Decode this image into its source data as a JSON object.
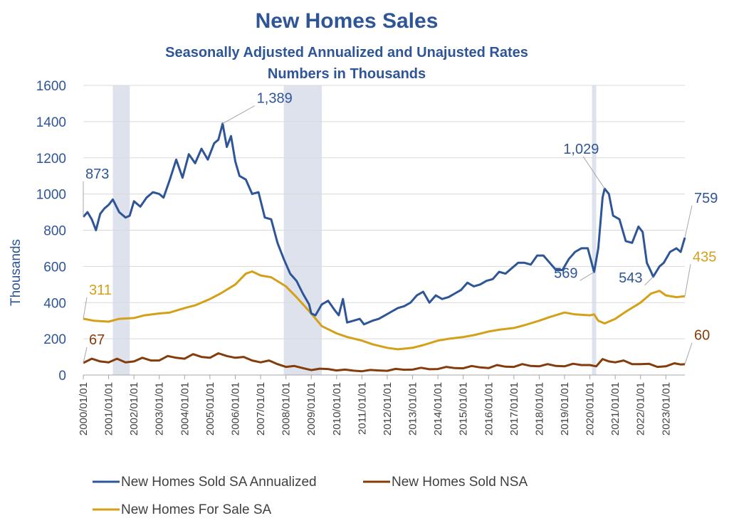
{
  "chart_data": {
    "type": "line",
    "title": "New Homes Sales",
    "subtitle_line1": "Seasonally Adjusted Annualized and Unajusted Rates",
    "subtitle_line2": "Numbers in Thousands",
    "ylabel": "Thousands",
    "xlabel": "",
    "ylim": [
      0,
      1600
    ],
    "xlim": [
      "2000/01/01",
      "2023/10/01"
    ],
    "y_ticks": [
      "0",
      "200",
      "400",
      "600",
      "800",
      "1000",
      "1200",
      "1400",
      "1600"
    ],
    "x_ticks": [
      "2000/01/01",
      "2001/01/01",
      "2002/01/01",
      "2003/01/01",
      "2004/01/01",
      "2005/01/01",
      "2006/01/01",
      "2007/01/01",
      "2008/01/01",
      "2009/01/01",
      "2010/01/01",
      "2011/01/01",
      "2012/01/01",
      "2013/01/01",
      "2014/01/01",
      "2015/01/01",
      "2016/01/01",
      "2017/01/01",
      "2018/01/01",
      "2019/01/01",
      "2020/01/01",
      "2021/01/01",
      "2022/01/01",
      "2023/01/01"
    ],
    "grid": "horizontal",
    "legend_position": "bottom",
    "recessions": [
      {
        "start": "2001/03/01",
        "end": "2001/11/01"
      },
      {
        "start": "2007/12/01",
        "end": "2009/06/01"
      },
      {
        "start": "2020/02/01",
        "end": "2020/04/01"
      }
    ],
    "series": [
      {
        "name": "New Homes Sold SA Annualized",
        "color": "#2e5597",
        "points": [
          [
            "2000/01/01",
            873
          ],
          [
            "2000/03/01",
            900
          ],
          [
            "2000/05/01",
            860
          ],
          [
            "2000/07/01",
            800
          ],
          [
            "2000/09/01",
            890
          ],
          [
            "2000/11/01",
            920
          ],
          [
            "2001/01/01",
            940
          ],
          [
            "2001/03/01",
            970
          ],
          [
            "2001/06/01",
            900
          ],
          [
            "2001/09/01",
            870
          ],
          [
            "2001/11/01",
            880
          ],
          [
            "2002/01/01",
            960
          ],
          [
            "2002/04/01",
            930
          ],
          [
            "2002/07/01",
            980
          ],
          [
            "2002/10/01",
            1010
          ],
          [
            "2003/01/01",
            1000
          ],
          [
            "2003/03/01",
            980
          ],
          [
            "2003/06/01",
            1080
          ],
          [
            "2003/09/01",
            1190
          ],
          [
            "2003/12/01",
            1090
          ],
          [
            "2004/03/01",
            1220
          ],
          [
            "2004/06/01",
            1170
          ],
          [
            "2004/09/01",
            1250
          ],
          [
            "2004/12/01",
            1190
          ],
          [
            "2005/03/01",
            1280
          ],
          [
            "2005/05/01",
            1300
          ],
          [
            "2005/07/01",
            1389
          ],
          [
            "2005/09/01",
            1260
          ],
          [
            "2005/11/01",
            1320
          ],
          [
            "2006/01/01",
            1180
          ],
          [
            "2006/03/01",
            1100
          ],
          [
            "2006/06/01",
            1080
          ],
          [
            "2006/09/01",
            1000
          ],
          [
            "2006/12/01",
            1010
          ],
          [
            "2007/03/01",
            870
          ],
          [
            "2007/06/01",
            860
          ],
          [
            "2007/09/01",
            730
          ],
          [
            "2007/12/01",
            640
          ],
          [
            "2008/03/01",
            560
          ],
          [
            "2008/06/01",
            520
          ],
          [
            "2008/09/01",
            450
          ],
          [
            "2008/12/01",
            390
          ],
          [
            "2009/01/01",
            340
          ],
          [
            "2009/03/01",
            330
          ],
          [
            "2009/06/01",
            390
          ],
          [
            "2009/09/01",
            410
          ],
          [
            "2009/12/01",
            360
          ],
          [
            "2010/02/01",
            330
          ],
          [
            "2010/04/01",
            420
          ],
          [
            "2010/06/01",
            290
          ],
          [
            "2010/09/01",
            300
          ],
          [
            "2010/12/01",
            310
          ],
          [
            "2011/02/01",
            280
          ],
          [
            "2011/06/01",
            300
          ],
          [
            "2011/09/01",
            310
          ],
          [
            "2011/12/01",
            330
          ],
          [
            "2012/03/01",
            350
          ],
          [
            "2012/06/01",
            370
          ],
          [
            "2012/09/01",
            380
          ],
          [
            "2012/12/01",
            400
          ],
          [
            "2013/03/01",
            440
          ],
          [
            "2013/06/01",
            460
          ],
          [
            "2013/09/01",
            400
          ],
          [
            "2013/12/01",
            440
          ],
          [
            "2014/03/01",
            420
          ],
          [
            "2014/06/01",
            430
          ],
          [
            "2014/09/01",
            450
          ],
          [
            "2014/12/01",
            470
          ],
          [
            "2015/03/01",
            510
          ],
          [
            "2015/06/01",
            490
          ],
          [
            "2015/09/01",
            500
          ],
          [
            "2015/12/01",
            520
          ],
          [
            "2016/03/01",
            530
          ],
          [
            "2016/06/01",
            570
          ],
          [
            "2016/09/01",
            560
          ],
          [
            "2016/12/01",
            590
          ],
          [
            "2017/03/01",
            620
          ],
          [
            "2017/06/01",
            620
          ],
          [
            "2017/09/01",
            610
          ],
          [
            "2017/12/01",
            660
          ],
          [
            "2018/03/01",
            660
          ],
          [
            "2018/06/01",
            620
          ],
          [
            "2018/09/01",
            580
          ],
          [
            "2018/12/01",
            580
          ],
          [
            "2019/03/01",
            640
          ],
          [
            "2019/06/01",
            680
          ],
          [
            "2019/09/01",
            700
          ],
          [
            "2019/12/01",
            700
          ],
          [
            "2020/03/01",
            569
          ],
          [
            "2020/05/01",
            700
          ],
          [
            "2020/07/01",
            980
          ],
          [
            "2020/08/01",
            1029
          ],
          [
            "2020/10/01",
            1000
          ],
          [
            "2020/12/01",
            880
          ],
          [
            "2021/03/01",
            860
          ],
          [
            "2021/06/01",
            740
          ],
          [
            "2021/09/01",
            730
          ],
          [
            "2021/12/01",
            820
          ],
          [
            "2022/02/01",
            790
          ],
          [
            "2022/04/01",
            620
          ],
          [
            "2022/06/01",
            570
          ],
          [
            "2022/07/01",
            543
          ],
          [
            "2022/10/01",
            600
          ],
          [
            "2022/12/01",
            620
          ],
          [
            "2023/03/01",
            680
          ],
          [
            "2023/06/01",
            700
          ],
          [
            "2023/08/01",
            680
          ],
          [
            "2023/10/01",
            759
          ]
        ]
      },
      {
        "name": "New Homes Sold NSA",
        "color": "#843c0c",
        "points": [
          [
            "2000/01/01",
            67
          ],
          [
            "2000/05/01",
            90
          ],
          [
            "2000/09/01",
            75
          ],
          [
            "2001/01/01",
            70
          ],
          [
            "2001/05/01",
            90
          ],
          [
            "2001/09/01",
            70
          ],
          [
            "2002/01/01",
            75
          ],
          [
            "2002/05/01",
            95
          ],
          [
            "2002/09/01",
            80
          ],
          [
            "2003/01/01",
            80
          ],
          [
            "2003/05/01",
            105
          ],
          [
            "2003/09/01",
            95
          ],
          [
            "2004/01/01",
            90
          ],
          [
            "2004/05/01",
            115
          ],
          [
            "2004/09/01",
            100
          ],
          [
            "2005/01/01",
            95
          ],
          [
            "2005/05/01",
            120
          ],
          [
            "2005/09/01",
            105
          ],
          [
            "2006/01/01",
            95
          ],
          [
            "2006/05/01",
            100
          ],
          [
            "2006/09/01",
            80
          ],
          [
            "2007/01/01",
            70
          ],
          [
            "2007/05/01",
            80
          ],
          [
            "2007/09/01",
            60
          ],
          [
            "2008/01/01",
            45
          ],
          [
            "2008/05/01",
            50
          ],
          [
            "2008/09/01",
            38
          ],
          [
            "2009/01/01",
            27
          ],
          [
            "2009/05/01",
            35
          ],
          [
            "2009/09/01",
            33
          ],
          [
            "2010/01/01",
            25
          ],
          [
            "2010/05/01",
            30
          ],
          [
            "2010/09/01",
            24
          ],
          [
            "2011/01/01",
            21
          ],
          [
            "2011/05/01",
            28
          ],
          [
            "2011/09/01",
            25
          ],
          [
            "2012/01/01",
            23
          ],
          [
            "2012/05/01",
            34
          ],
          [
            "2012/09/01",
            29
          ],
          [
            "2013/01/01",
            30
          ],
          [
            "2013/05/01",
            40
          ],
          [
            "2013/09/01",
            32
          ],
          [
            "2014/01/01",
            33
          ],
          [
            "2014/05/01",
            45
          ],
          [
            "2014/09/01",
            38
          ],
          [
            "2015/01/01",
            37
          ],
          [
            "2015/05/01",
            50
          ],
          [
            "2015/09/01",
            42
          ],
          [
            "2016/01/01",
            38
          ],
          [
            "2016/05/01",
            55
          ],
          [
            "2016/09/01",
            46
          ],
          [
            "2017/01/01",
            45
          ],
          [
            "2017/05/01",
            60
          ],
          [
            "2017/09/01",
            50
          ],
          [
            "2018/01/01",
            48
          ],
          [
            "2018/05/01",
            60
          ],
          [
            "2018/09/01",
            50
          ],
          [
            "2019/01/01",
            48
          ],
          [
            "2019/05/01",
            62
          ],
          [
            "2019/09/01",
            55
          ],
          [
            "2020/01/01",
            55
          ],
          [
            "2020/04/01",
            48
          ],
          [
            "2020/07/01",
            88
          ],
          [
            "2020/10/01",
            75
          ],
          [
            "2021/01/01",
            70
          ],
          [
            "2021/05/01",
            80
          ],
          [
            "2021/09/01",
            60
          ],
          [
            "2022/01/01",
            60
          ],
          [
            "2022/05/01",
            62
          ],
          [
            "2022/09/01",
            45
          ],
          [
            "2023/01/01",
            48
          ],
          [
            "2023/05/01",
            65
          ],
          [
            "2023/08/01",
            58
          ],
          [
            "2023/10/01",
            60
          ]
        ]
      },
      {
        "name": "New Homes For Sale SA",
        "color": "#d4a017",
        "points": [
          [
            "2000/01/01",
            311
          ],
          [
            "2000/06/01",
            300
          ],
          [
            "2001/01/01",
            295
          ],
          [
            "2001/06/01",
            310
          ],
          [
            "2002/01/01",
            315
          ],
          [
            "2002/06/01",
            330
          ],
          [
            "2003/01/01",
            340
          ],
          [
            "2003/06/01",
            345
          ],
          [
            "2004/01/01",
            370
          ],
          [
            "2004/06/01",
            385
          ],
          [
            "2005/01/01",
            420
          ],
          [
            "2005/06/01",
            450
          ],
          [
            "2006/01/01",
            500
          ],
          [
            "2006/06/01",
            560
          ],
          [
            "2006/09/01",
            572
          ],
          [
            "2007/01/01",
            550
          ],
          [
            "2007/06/01",
            540
          ],
          [
            "2008/01/01",
            490
          ],
          [
            "2008/06/01",
            430
          ],
          [
            "2009/01/01",
            340
          ],
          [
            "2009/06/01",
            270
          ],
          [
            "2010/01/01",
            230
          ],
          [
            "2010/06/01",
            210
          ],
          [
            "2011/01/01",
            190
          ],
          [
            "2011/06/01",
            170
          ],
          [
            "2012/01/01",
            150
          ],
          [
            "2012/06/01",
            142
          ],
          [
            "2013/01/01",
            150
          ],
          [
            "2013/06/01",
            165
          ],
          [
            "2014/01/01",
            190
          ],
          [
            "2014/06/01",
            200
          ],
          [
            "2015/01/01",
            210
          ],
          [
            "2015/06/01",
            220
          ],
          [
            "2016/01/01",
            240
          ],
          [
            "2016/06/01",
            250
          ],
          [
            "2017/01/01",
            260
          ],
          [
            "2017/06/01",
            275
          ],
          [
            "2018/01/01",
            300
          ],
          [
            "2018/06/01",
            320
          ],
          [
            "2019/01/01",
            345
          ],
          [
            "2019/06/01",
            335
          ],
          [
            "2020/01/01",
            330
          ],
          [
            "2020/03/01",
            335
          ],
          [
            "2020/05/01",
            300
          ],
          [
            "2020/08/01",
            285
          ],
          [
            "2021/01/01",
            310
          ],
          [
            "2021/06/01",
            350
          ],
          [
            "2022/01/01",
            400
          ],
          [
            "2022/06/01",
            450
          ],
          [
            "2022/10/01",
            465
          ],
          [
            "2023/01/01",
            440
          ],
          [
            "2023/06/01",
            430
          ],
          [
            "2023/10/01",
            435
          ]
        ]
      }
    ],
    "annotations": [
      {
        "text": "873",
        "series": 0,
        "x": "2000/01/01",
        "y": 873
      },
      {
        "text": "1,389",
        "series": 0,
        "x": "2005/07/01",
        "y": 1389
      },
      {
        "text": "1,029",
        "series": 0,
        "x": "2020/08/01",
        "y": 1029
      },
      {
        "text": "569",
        "series": 0,
        "x": "2020/03/01",
        "y": 569
      },
      {
        "text": "543",
        "series": 0,
        "x": "2022/07/01",
        "y": 543
      },
      {
        "text": "759",
        "series": 0,
        "x": "2023/10/01",
        "y": 759
      },
      {
        "text": "311",
        "series": 2,
        "x": "2000/01/01",
        "y": 311
      },
      {
        "text": "435",
        "series": 2,
        "x": "2023/10/01",
        "y": 435
      },
      {
        "text": "67",
        "series": 1,
        "x": "2000/01/01",
        "y": 67
      },
      {
        "text": "60",
        "series": 1,
        "x": "2023/10/01",
        "y": 60
      }
    ]
  }
}
